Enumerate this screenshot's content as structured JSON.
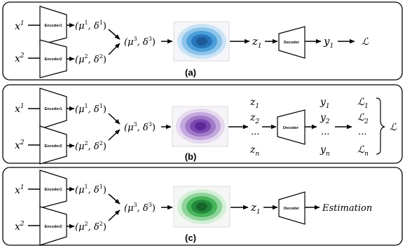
{
  "panels": [
    {
      "label": "(a)",
      "x1": "x",
      "x1_sup": "1",
      "x2": "x",
      "x2_sup": "2",
      "encoder1": "Encoder1",
      "encoder2": "Encoder2",
      "p1": "(μ",
      "p1_sup": "1",
      "p1_mid": ", δ",
      "p1_sup2": "1",
      "p1_end": ")",
      "p2": "(μ",
      "p2_sup": "2",
      "p2_mid": ", δ",
      "p2_sup2": "2",
      "p2_end": ")",
      "p3": "(μ",
      "p3_sup": "3",
      "p3_mid": ", δ",
      "p3_sup2": "3",
      "p3_end": ")",
      "z": "z",
      "z_sub": "1",
      "decoder": "Decoder",
      "y": "y",
      "y_sub": "1",
      "loss": "ℒ",
      "blob_colors": [
        "#c9e3f5",
        "#8cc4ea",
        "#4b9fd8",
        "#2776bb",
        "#1b5a96"
      ]
    },
    {
      "label": "(b)",
      "x1": "x",
      "x1_sup": "1",
      "x2": "x",
      "x2_sup": "2",
      "encoder1": "Encoder1",
      "encoder2": "Encoder2",
      "p1": "(μ",
      "p1_sup": "1",
      "p1_mid": ", δ",
      "p1_sup2": "1",
      "p1_end": ")",
      "p2": "(μ",
      "p2_sup": "2",
      "p2_mid": ", δ",
      "p2_sup2": "2",
      "p2_end": ")",
      "p3": "(μ",
      "p3_sup": "3",
      "p3_mid": ", δ",
      "p3_sup2": "3",
      "p3_end": ")",
      "zs": [
        {
          "t": "z",
          "s": "1"
        },
        {
          "t": "z",
          "s": "2"
        },
        {
          "t": "...",
          "s": ""
        },
        {
          "t": "z",
          "s": "n"
        }
      ],
      "decoder": "Decoder",
      "ys": [
        {
          "t": "y",
          "s": "1"
        },
        {
          "t": "y",
          "s": "2"
        },
        {
          "t": "...",
          "s": ""
        },
        {
          "t": "y",
          "s": "n"
        }
      ],
      "ls": [
        {
          "t": "ℒ",
          "s": "1"
        },
        {
          "t": "ℒ",
          "s": "2"
        },
        {
          "t": "...",
          "s": ""
        },
        {
          "t": "ℒ",
          "s": "n"
        }
      ],
      "loss": "ℒ",
      "blob_colors": [
        "#e5d9ef",
        "#c4a8dd",
        "#9f79c8",
        "#7a47b0",
        "#5a2a96"
      ]
    },
    {
      "label": "(c)",
      "x1": "x",
      "x1_sup": "1",
      "x2": "x",
      "x2_sup": "2",
      "encoder1": "Encoder1",
      "encoder2": "Encoder2",
      "p1": "(μ",
      "p1_sup": "1",
      "p1_mid": ", δ",
      "p1_sup2": "1",
      "p1_end": ")",
      "p2": "(μ",
      "p2_sup": "2",
      "p2_mid": ", δ",
      "p2_sup2": "2",
      "p2_end": ")",
      "p3": "(μ",
      "p3_sup": "3",
      "p3_mid": ", δ",
      "p3_sup2": "3",
      "p3_end": ")",
      "z": "z",
      "z_sub": "1",
      "decoder": "Decoder",
      "estimation": "Estimation",
      "blob_colors": [
        "#d3efd6",
        "#8fd49a",
        "#45b45a",
        "#238a3c",
        "#16652a"
      ]
    }
  ]
}
